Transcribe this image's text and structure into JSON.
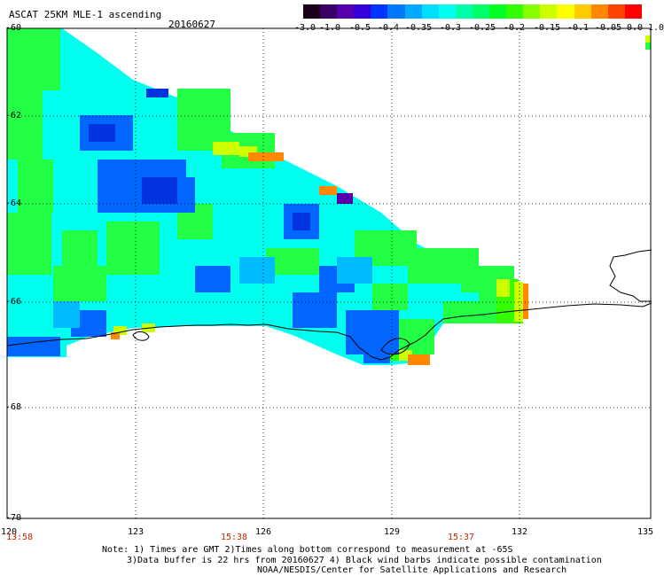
{
  "title": "ASCAT 25KM MLE-1 ascending",
  "date": "20160627",
  "colorbar": {
    "labels": [
      "-3.0",
      "-1.0",
      "-0.5",
      "-0.4",
      "-0.35",
      "-0.3",
      "-0.25",
      "-0.2",
      "-0.15",
      "-0.1",
      "-0.05",
      "0.0",
      "1.0"
    ],
    "colors": [
      "#1a0018",
      "#3a0066",
      "#5500aa",
      "#3300dd",
      "#0033ff",
      "#0077ff",
      "#00aaff",
      "#00ddff",
      "#00ffee",
      "#00ffaa",
      "#00ff66",
      "#00ff22",
      "#33ff00",
      "#88ff00",
      "#ccff00",
      "#ffff00",
      "#ffcc00",
      "#ff8800",
      "#ff4400",
      "#ff0000"
    ]
  },
  "axes": {
    "y_labels": [
      "-60",
      "-62",
      "-64",
      "-66",
      "-68",
      "-70"
    ],
    "x_labels": [
      "120",
      "123",
      "126",
      "129",
      "132",
      "135"
    ],
    "time_labels": [
      "13:58",
      "15:38",
      "15:37"
    ]
  },
  "notes": {
    "line1": "Note: 1) Times are GMT 2)Times along bottom correspond to measurement at -65S",
    "line2": "3)Data buffer is 22 hrs from 20160627 4) Black wind barbs indicate possible contamination",
    "line3": "NOAA/NESDIS/Center for Satellite Applications and Research"
  }
}
